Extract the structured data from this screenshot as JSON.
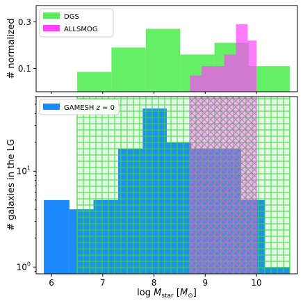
{
  "chart_data": [
    {
      "type": "bar",
      "panel": "top",
      "ylabel": "# normalized",
      "yscale": "linear",
      "ylim": [
        0,
        0.37
      ],
      "yticks": [
        {
          "value": 0.1,
          "label": "0.1"
        },
        {
          "value": 0.3,
          "label": "0.3"
        }
      ],
      "xlim": [
        5.7,
        10.8
      ],
      "bin_edges": [
        6.5,
        7.17,
        7.84,
        8.51,
        9.18,
        9.85,
        10.52
      ],
      "grid": false,
      "legend_position": "top-left",
      "series": [
        {
          "name": "DGS",
          "color": "#55ee55",
          "bars": [
            {
              "x0": 6.5,
              "x1": 7.17,
              "value": 0.085
            },
            {
              "x0": 7.17,
              "x1": 7.84,
              "value": 0.19
            },
            {
              "x0": 7.84,
              "x1": 8.51,
              "value": 0.27
            },
            {
              "x0": 8.51,
              "x1": 9.18,
              "value": 0.16
            },
            {
              "x0": 9.18,
              "x1": 9.85,
              "value": 0.21
            },
            {
              "x0": 9.85,
              "x1": 10.65,
              "value": 0.11
            }
          ]
        },
        {
          "name": "ALLSMOG",
          "color": "#ff44ff",
          "bars": [
            {
              "x0": 8.7,
              "x1": 8.93,
              "value": 0.07
            },
            {
              "x0": 8.93,
              "x1": 9.37,
              "value": 0.11
            },
            {
              "x0": 9.37,
              "x1": 9.6,
              "value": 0.16
            },
            {
              "x0": 9.6,
              "x1": 9.83,
              "value": 0.29
            },
            {
              "x0": 9.83,
              "x1": 10.0,
              "value": 0.22
            }
          ]
        }
      ]
    },
    {
      "type": "bar",
      "panel": "bottom",
      "ylabel": "# galaxies in the LG",
      "xlabel": "log M_star [M_sun]",
      "yscale": "log",
      "ylim": [
        0.85,
        60
      ],
      "yticks": [
        {
          "value": 1,
          "base": "10",
          "exp": "0"
        },
        {
          "value": 10,
          "base": "10",
          "exp": "1"
        }
      ],
      "xlim": [
        5.7,
        10.8
      ],
      "xticks": [
        6,
        7,
        8,
        9,
        10
      ],
      "grid": false,
      "legend_position": "top-left",
      "series": [
        {
          "name": "GAMESH z = 0",
          "color": "#1e88ff",
          "bars": [
            {
              "x0": 5.85,
              "x1": 6.35,
              "value": 5
            },
            {
              "x0": 6.35,
              "x1": 6.82,
              "value": 4
            },
            {
              "x0": 6.82,
              "x1": 7.3,
              "value": 5
            },
            {
              "x0": 7.3,
              "x1": 7.78,
              "value": 17
            },
            {
              "x0": 7.78,
              "x1": 8.25,
              "value": 45
            },
            {
              "x0": 8.25,
              "x1": 8.73,
              "value": 20
            },
            {
              "x0": 8.73,
              "x1": 9.7,
              "value": 17
            },
            {
              "x0": 9.7,
              "x1": 10.17,
              "value": 5
            },
            {
              "x0": 10.17,
              "x1": 10.65,
              "value": 1
            }
          ]
        },
        {
          "name": "DGS",
          "style": "grid-hatch",
          "color": "#33dd33",
          "x0": 6.5,
          "x1": 10.65
        },
        {
          "name": "ALLSMOG",
          "style": "cross-hatch",
          "color": "#cc66cc",
          "x0": 8.7,
          "x1": 10.0
        }
      ]
    }
  ],
  "labels": {
    "top_ylabel": "# normalized",
    "bottom_ylabel": "# galaxies in the LG",
    "xlabel_main": "log ",
    "xlabel_var": "M",
    "xlabel_sub": "star",
    "xlabel_unit_open": " [",
    "xlabel_unit_var": "M",
    "xlabel_unit_sub": "⊙",
    "xlabel_unit_close": "]",
    "legend_top_1": "DGS",
    "legend_top_2": "ALLSMOG",
    "legend_bottom_prefix": "GAMESH ",
    "legend_bottom_var": "z",
    "legend_bottom_suffix": " = 0"
  }
}
